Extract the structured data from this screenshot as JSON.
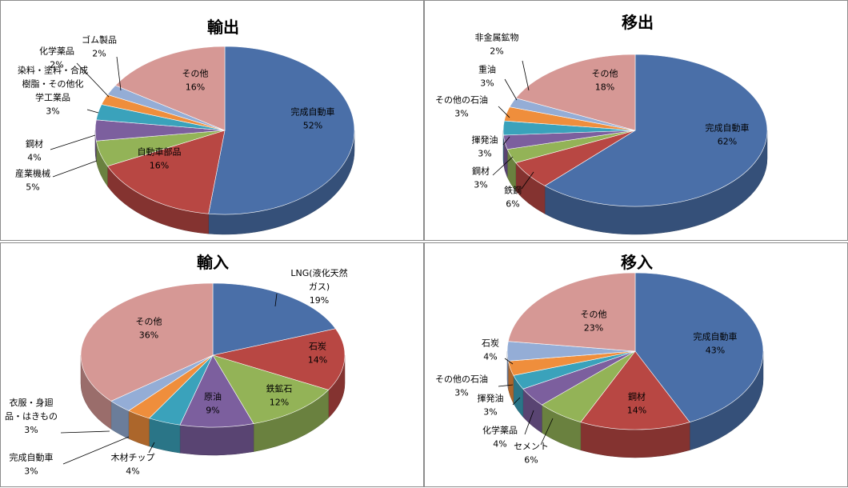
{
  "chart_data": [
    {
      "type": "pie",
      "title": "輸出",
      "slices": [
        {
          "label": "完成自動車",
          "value": 52,
          "pct": "52%",
          "color": "#4a6fa8"
        },
        {
          "label": "自動車部品",
          "value": 16,
          "pct": "16%",
          "color": "#b84743"
        },
        {
          "label": "産業機械",
          "value": 5,
          "pct": "5%",
          "color": "#93b357"
        },
        {
          "label": "鋼材",
          "value": 4,
          "pct": "4%",
          "color": "#7c5f9e"
        },
        {
          "label": "染料・塗料・合成樹脂・その他化学工業品",
          "lines": [
            "染料・塗料・合成",
            "樹脂・その他化",
            "学工業品"
          ],
          "value": 3,
          "pct": "3%",
          "color": "#3aa2bb"
        },
        {
          "label": "化学薬品",
          "value": 2,
          "pct": "2%",
          "color": "#ef8e3c"
        },
        {
          "label": "ゴム製品",
          "value": 2,
          "pct": "2%",
          "color": "#94add6"
        },
        {
          "label": "その他",
          "value": 16,
          "pct": "16%",
          "color": "#d69895"
        }
      ]
    },
    {
      "type": "pie",
      "title": "移出",
      "slices": [
        {
          "label": "完成自動車",
          "value": 62,
          "pct": "62%",
          "color": "#4a6fa8"
        },
        {
          "label": "鉄鋼",
          "value": 6,
          "pct": "6%",
          "color": "#b84743"
        },
        {
          "label": "鋼材",
          "value": 3,
          "pct": "3%",
          "color": "#93b357"
        },
        {
          "label": "揮発油",
          "value": 3,
          "pct": "3%",
          "color": "#7c5f9e"
        },
        {
          "label": "その他の石油",
          "value": 3,
          "pct": "3%",
          "color": "#3aa2bb"
        },
        {
          "label": "重油",
          "value": 3,
          "pct": "3%",
          "color": "#ef8e3c"
        },
        {
          "label": "非金属鉱物",
          "value": 2,
          "pct": "2%",
          "color": "#94add6"
        },
        {
          "label": "その他",
          "value": 18,
          "pct": "18%",
          "color": "#d69895"
        }
      ]
    },
    {
      "type": "pie",
      "title": "輸入",
      "slices": [
        {
          "label": "LNG(液化天然ガス)",
          "lines": [
            "LNG(液化天然",
            "ガス)"
          ],
          "value": 19,
          "pct": "19%",
          "color": "#4a6fa8"
        },
        {
          "label": "石炭",
          "value": 14,
          "pct": "14%",
          "color": "#b84743"
        },
        {
          "label": "鉄鉱石",
          "value": 12,
          "pct": "12%",
          "color": "#93b357"
        },
        {
          "label": "原油",
          "value": 9,
          "pct": "9%",
          "color": "#7c5f9e"
        },
        {
          "label": "木材チップ",
          "value": 4,
          "pct": "4%",
          "color": "#3aa2bb"
        },
        {
          "label": "完成自動車",
          "value": 3,
          "pct": "3%",
          "color": "#ef8e3c"
        },
        {
          "label": "衣服・身廻品・はきもの",
          "lines": [
            "衣服・身廻",
            "品・はきもの"
          ],
          "value": 3,
          "pct": "3%",
          "color": "#94add6"
        },
        {
          "label": "その他",
          "value": 36,
          "pct": "36%",
          "color": "#d69895"
        }
      ]
    },
    {
      "type": "pie",
      "title": "移入",
      "slices": [
        {
          "label": "完成自動車",
          "value": 43,
          "pct": "43%",
          "color": "#4a6fa8"
        },
        {
          "label": "鋼材",
          "value": 14,
          "pct": "14%",
          "color": "#b84743"
        },
        {
          "label": "セメント",
          "value": 6,
          "pct": "6%",
          "color": "#93b357"
        },
        {
          "label": "化学薬品",
          "value": 4,
          "pct": "4%",
          "color": "#7c5f9e"
        },
        {
          "label": "揮発油",
          "value": 3,
          "pct": "3%",
          "color": "#3aa2bb"
        },
        {
          "label": "その他の石油",
          "value": 3,
          "pct": "3%",
          "color": "#ef8e3c"
        },
        {
          "label": "石炭",
          "value": 4,
          "pct": "4%",
          "color": "#94add6"
        },
        {
          "label": "その他",
          "value": 23,
          "pct": "23%",
          "color": "#d69895"
        }
      ]
    }
  ]
}
